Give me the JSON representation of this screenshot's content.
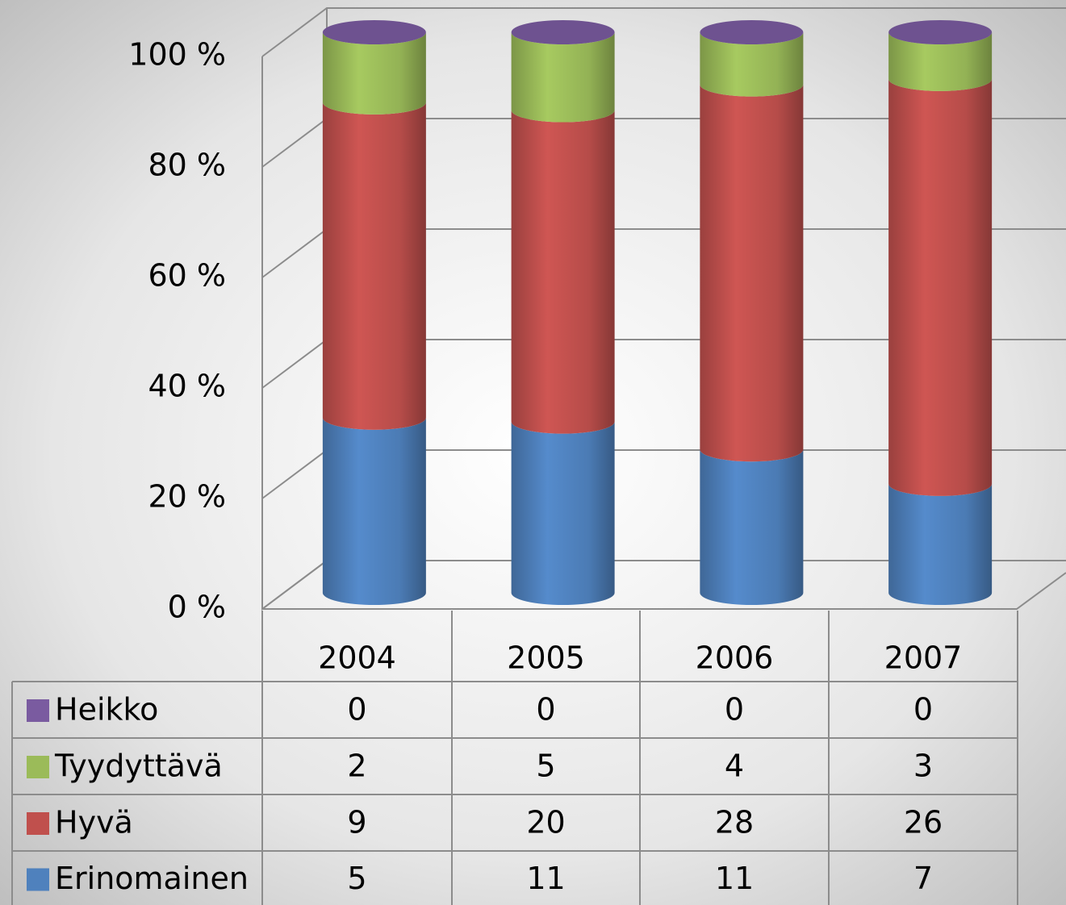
{
  "chart_data": {
    "type": "bar",
    "stacking": "percent",
    "shape": "cylinder",
    "categories": [
      "2004",
      "2005",
      "2006",
      "2007"
    ],
    "series": [
      {
        "name": "Erinomainen",
        "color": "#4f81bd",
        "values": [
          5,
          11,
          11,
          7
        ]
      },
      {
        "name": "Hyvä",
        "color": "#c0504d",
        "values": [
          9,
          20,
          28,
          26
        ]
      },
      {
        "name": "Tyydyttävä",
        "color": "#9bbb59",
        "values": [
          2,
          5,
          4,
          3
        ]
      },
      {
        "name": "Heikko",
        "color": "#7a5ba0",
        "values": [
          0,
          0,
          0,
          0
        ]
      }
    ],
    "ylim": [
      0,
      100
    ],
    "yticks": [
      {
        "value": 0,
        "label": "0 %"
      },
      {
        "value": 20,
        "label": "20 %"
      },
      {
        "value": 40,
        "label": "40 %"
      },
      {
        "value": 60,
        "label": "60 %"
      },
      {
        "value": 80,
        "label": "80 %"
      },
      {
        "value": 100,
        "label": "100 %"
      }
    ],
    "grid": true,
    "data_table": true
  }
}
